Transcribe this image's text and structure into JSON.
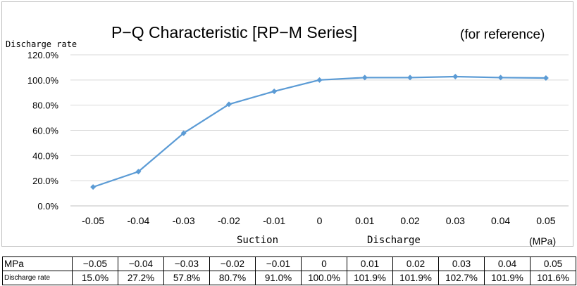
{
  "chart_data": {
    "type": "line",
    "title": "P−Q Characteristic [RP−M Series]",
    "note": "(for reference)",
    "ylabel": "Discharge rate",
    "xunit": "(MPa)",
    "x_group_labels": [
      "Suction",
      "Discharge"
    ],
    "ylim": [
      0,
      120
    ],
    "ytick_labels": [
      "0.0%",
      "20.0%",
      "40.0%",
      "60.0%",
      "80.0%",
      "100.0%",
      "120.0%"
    ],
    "categories": [
      "-0.05",
      "-0.04",
      "-0.03",
      "-0.02",
      "-0.01",
      "0",
      "0.01",
      "0.02",
      "0.03",
      "0.04",
      "0.05"
    ],
    "series": [
      {
        "values": [
          15.0,
          27.2,
          57.8,
          80.7,
          91.0,
          100.0,
          101.9,
          101.9,
          102.7,
          101.9,
          101.6
        ]
      }
    ],
    "grid": true,
    "line_color": "#5b9bd5",
    "grid_color": "#d9d9d9"
  },
  "table": {
    "row1_label": "MPa",
    "row1": [
      "−0.05",
      "−0.04",
      "−0.03",
      "−0.02",
      "−0.01",
      "0",
      "0.01",
      "0.02",
      "0.03",
      "0.04",
      "0.05"
    ],
    "row2_label": "Discharge rate",
    "row2": [
      "15.0%",
      "27.2%",
      "57.8%",
      "80.7%",
      "91.0%",
      "100.0%",
      "101.9%",
      "101.9%",
      "102.7%",
      "101.9%",
      "101.6%"
    ]
  }
}
